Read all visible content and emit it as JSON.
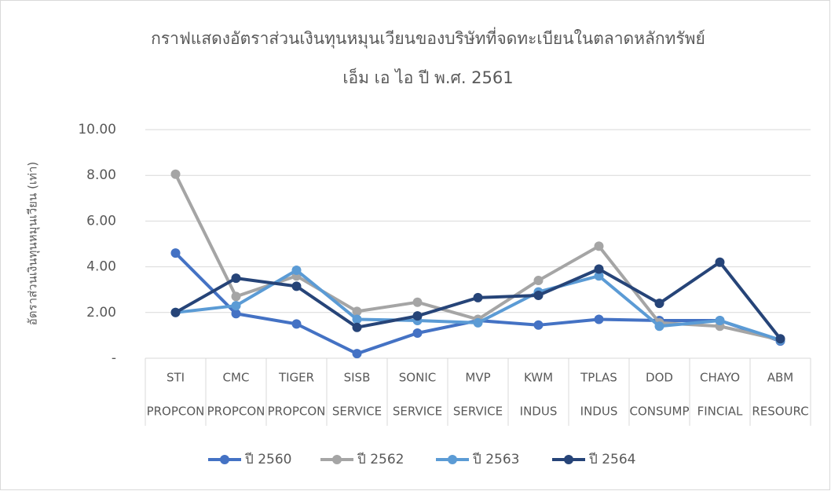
{
  "chart_data": {
    "type": "line",
    "title": "กราฟแสดงอัตราส่วนเงินทุนหมุนเวียนของบริษัทที่จดทะเบียนในตลาดหลักทรัพย์",
    "subtitle": "เอ็ม เอ ไอ ปี พ.ศ. 2561",
    "y_label": "อัตราส่วนเงินทุนหมุนเวียน (เท่า)",
    "categories": [
      "STI",
      "CMC",
      "TIGER",
      "SISB",
      "SONIC",
      "MVP",
      "KWM",
      "TPLAS",
      "DOD",
      "CHAYO",
      "ABM"
    ],
    "sectors": [
      "PROPCON",
      "PROPCON",
      "PROPCON",
      "SERVICE",
      "SERVICE",
      "SERVICE",
      "INDUS",
      "INDUS",
      "CONSUMP",
      "FINCIAL",
      "RESOURC"
    ],
    "series": [
      {
        "name": "ปี 2560",
        "color": "#4472c4",
        "values": [
          4.6,
          1.95,
          1.5,
          0.2,
          1.1,
          1.65,
          1.45,
          1.7,
          1.65,
          1.65,
          0.75
        ]
      },
      {
        "name": "ปี 2562",
        "color": "#a5a5a5",
        "values": [
          8.05,
          2.7,
          3.6,
          2.05,
          2.45,
          1.7,
          3.4,
          4.9,
          1.55,
          1.4,
          0.8
        ]
      },
      {
        "name": "ปี 2563",
        "color": "#5b9bd5",
        "values": [
          2.0,
          2.3,
          3.85,
          1.7,
          1.65,
          1.55,
          2.9,
          3.6,
          1.4,
          1.65,
          0.8
        ]
      },
      {
        "name": "ปี 2564",
        "color": "#264478",
        "values": [
          2.0,
          3.5,
          3.15,
          1.35,
          1.85,
          2.65,
          2.75,
          3.9,
          2.4,
          4.2,
          0.85
        ]
      }
    ],
    "ylim": [
      0,
      10
    ],
    "yticks": [
      {
        "value": 0,
        "label": "-"
      },
      {
        "value": 2,
        "label": "2.00"
      },
      {
        "value": 4,
        "label": "4.00"
      },
      {
        "value": 6,
        "label": "6.00"
      },
      {
        "value": 8,
        "label": "8.00"
      },
      {
        "value": 10,
        "label": "10.00"
      }
    ],
    "grid": true
  }
}
